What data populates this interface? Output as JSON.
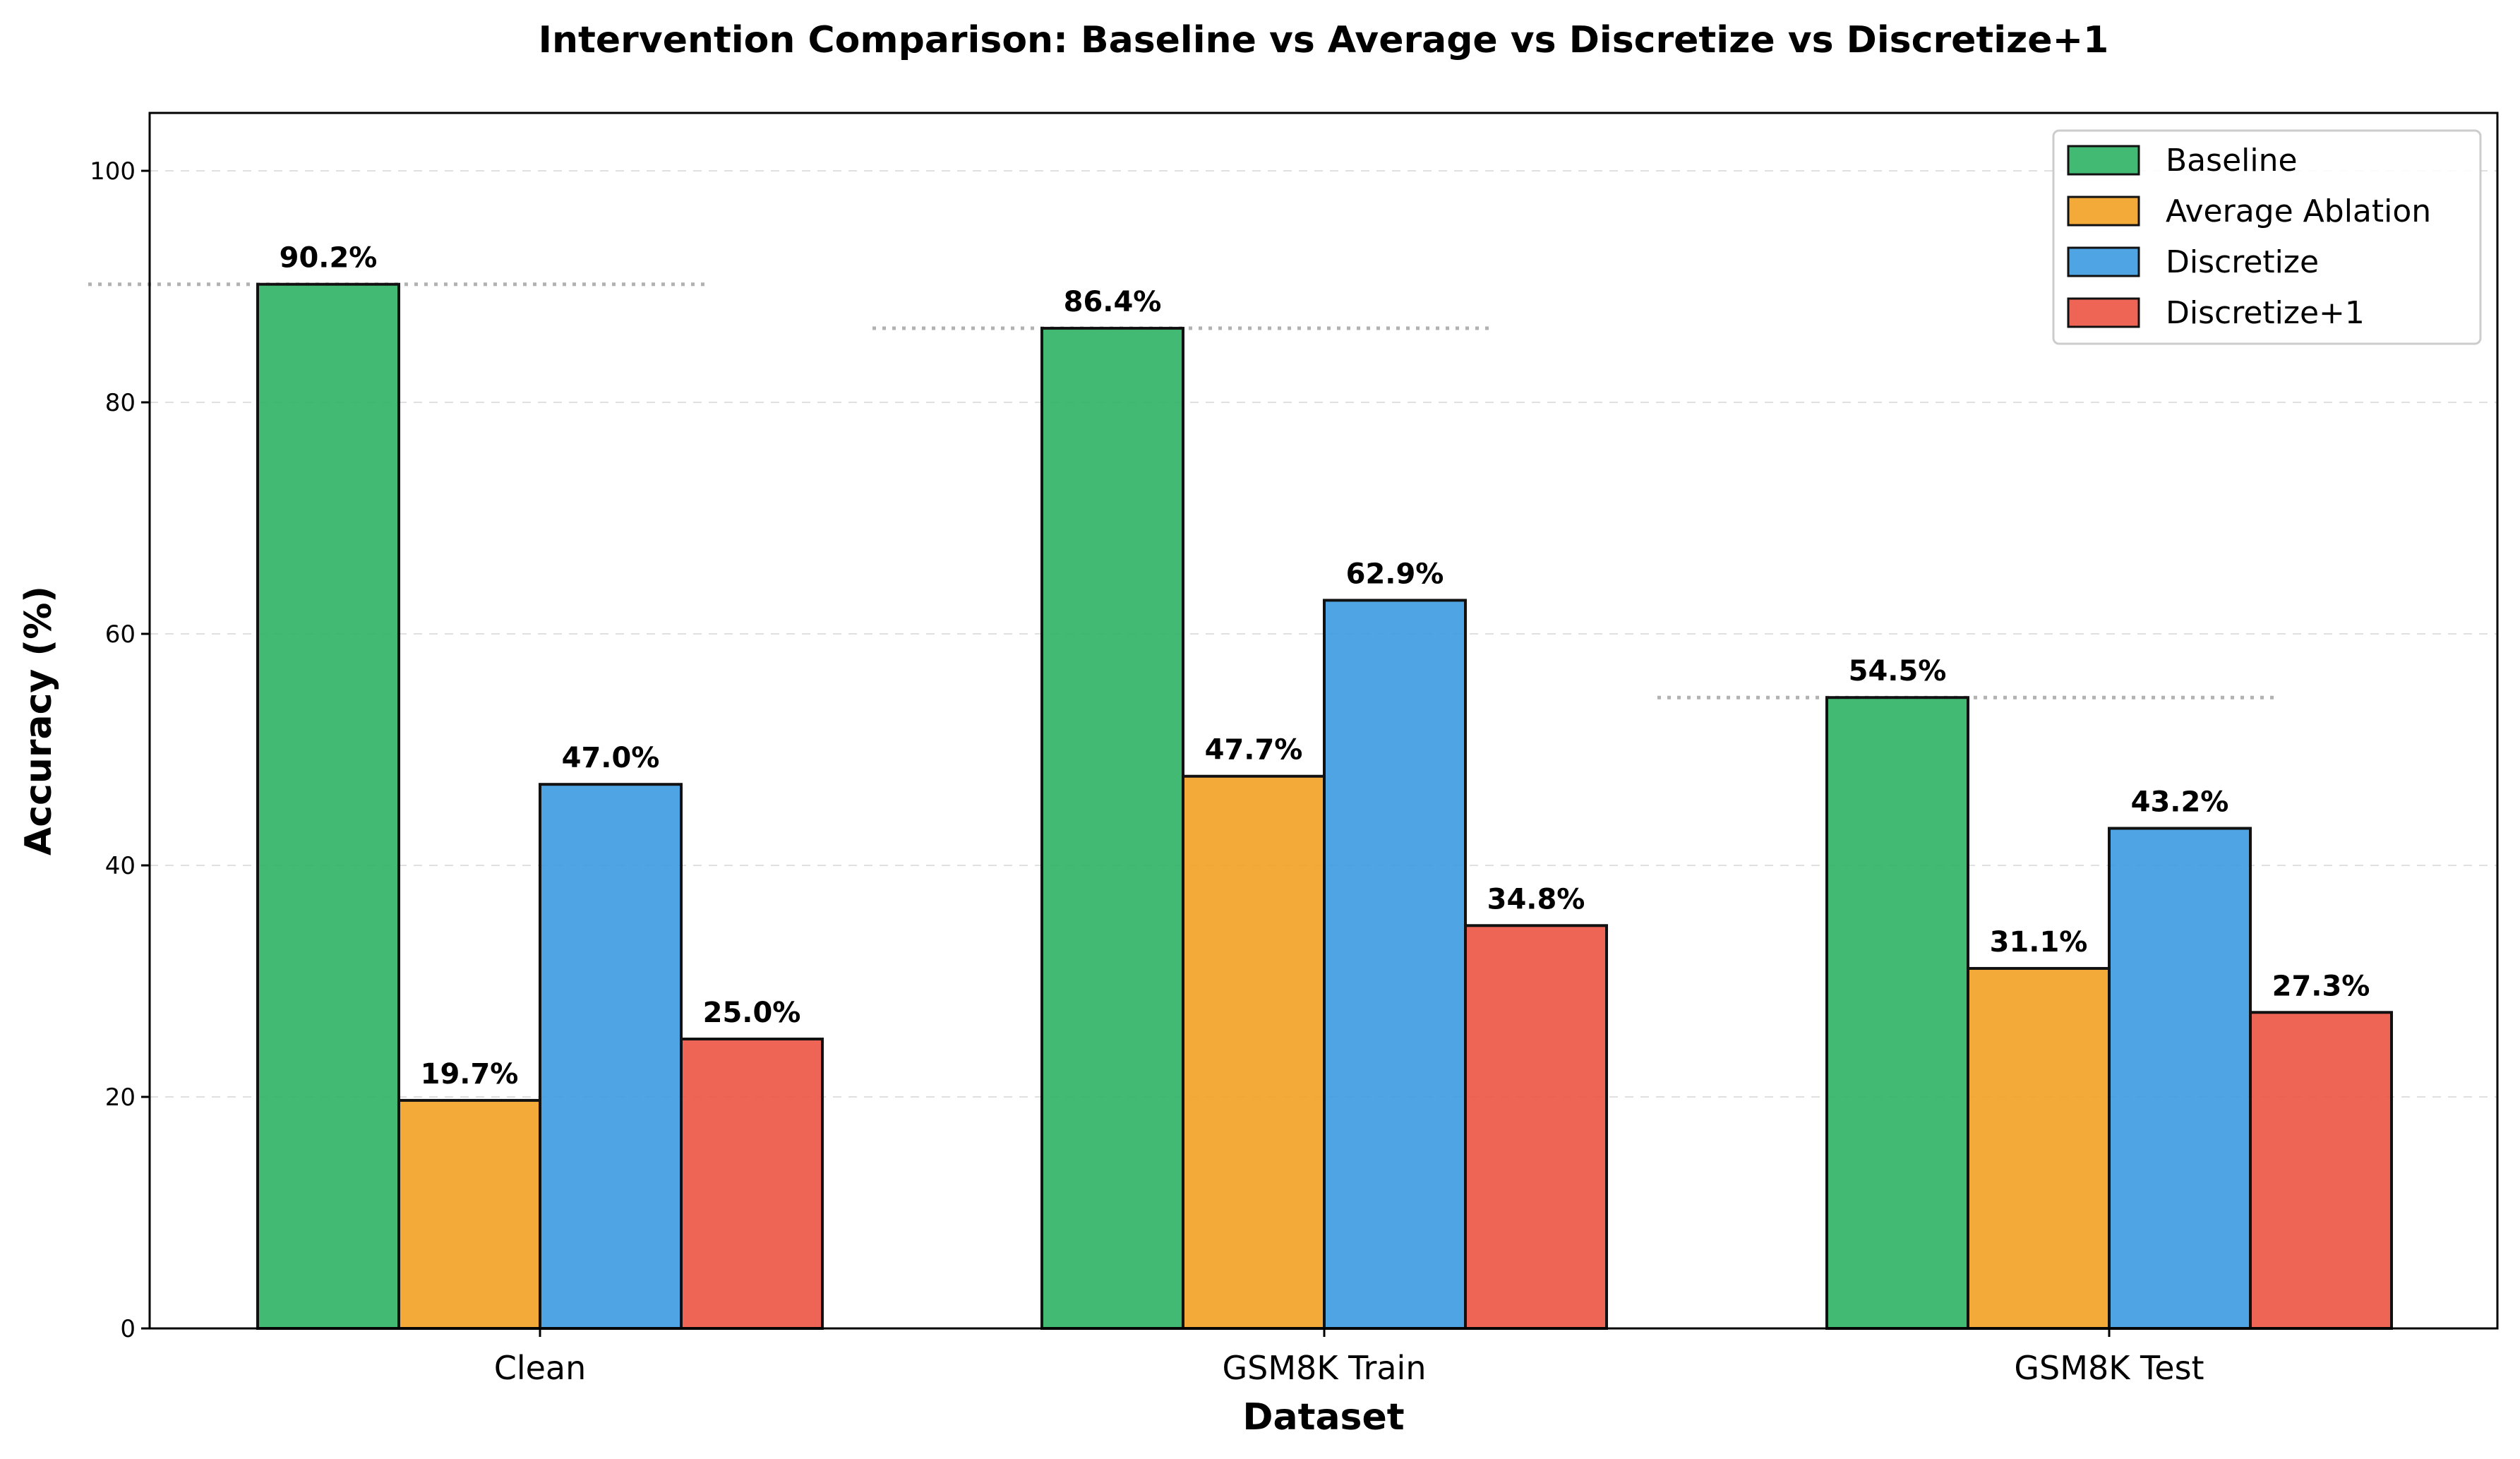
{
  "chart_data": {
    "type": "bar",
    "title": "Intervention Comparison: Baseline vs Average vs Discretize vs Discretize+1",
    "xlabel": "Dataset",
    "ylabel": "Accuracy (%)",
    "ylim": [
      0,
      105
    ],
    "yticks": [
      0,
      20,
      40,
      60,
      80,
      100
    ],
    "grid": "y-dashed",
    "legend_position": "top-right",
    "categories": [
      "Clean",
      "GSM8K Train",
      "GSM8K Test"
    ],
    "series": [
      {
        "name": "Baseline",
        "color": "#2eb265",
        "values": [
          90.2,
          86.4,
          54.5
        ],
        "labels": [
          "90.2%",
          "86.4%",
          "54.5%"
        ]
      },
      {
        "name": "Average Ablation",
        "color": "#f2a124",
        "values": [
          19.7,
          47.7,
          31.1
        ],
        "labels": [
          "19.7%",
          "47.7%",
          "31.1%"
        ]
      },
      {
        "name": "Discretize",
        "color": "#3c9be0",
        "values": [
          47.0,
          62.9,
          43.2
        ],
        "labels": [
          "47.0%",
          "62.9%",
          "43.2%"
        ]
      },
      {
        "name": "Discretize+1",
        "color": "#ec5444",
        "values": [
          25.0,
          34.8,
          27.3
        ],
        "labels": [
          "25.0%",
          "34.8%",
          "27.3%"
        ]
      }
    ],
    "baseline_reference_lines": [
      90.2,
      86.4,
      54.5
    ]
  }
}
